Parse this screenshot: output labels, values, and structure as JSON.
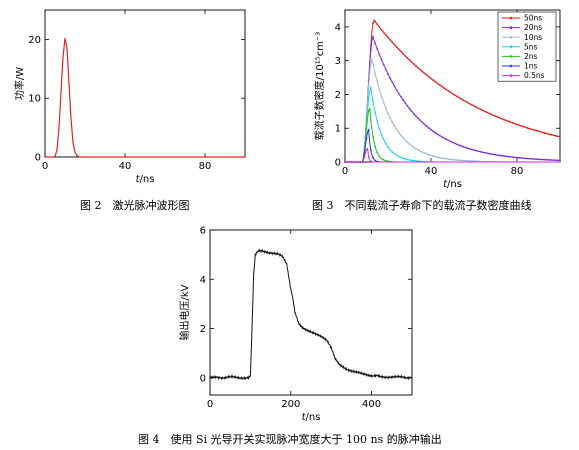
{
  "captions": {
    "fig2": "图 2　激光脉冲波形图",
    "fig3": "图 3　不同载流子寿命下的载流子数密度曲线",
    "fig4": "图 4　使用 Si 光导开关实现脉冲宽度大于 100 ns 的脉冲输出"
  },
  "chart_data": [
    {
      "id": "fig2",
      "type": "line",
      "ylabel": "功率/W",
      "xlabel_italic": "t",
      "xlabel_rest": "/ns",
      "xlim": [
        0,
        100
      ],
      "ylim": [
        0,
        25
      ],
      "xticks": [
        "0",
        "40",
        "80"
      ],
      "xtick_values": [
        0,
        40,
        80
      ],
      "yticks": [
        "0",
        "10",
        "20"
      ],
      "ytick_values": [
        0,
        10,
        20
      ],
      "series": [
        {
          "color": "#d62728",
          "x": [
            0,
            4,
            5,
            6,
            7,
            8,
            9,
            10,
            11,
            12,
            13,
            14,
            15,
            16,
            17,
            18,
            20,
            25,
            30,
            40,
            60,
            80,
            100
          ],
          "y": [
            0,
            0,
            0.1,
            1.2,
            5,
            11,
            17,
            20.2,
            18.5,
            12.5,
            6.5,
            2.5,
            0.8,
            0.2,
            0.05,
            0,
            0,
            0,
            0,
            0,
            0,
            0,
            0
          ]
        }
      ]
    },
    {
      "id": "fig3",
      "type": "line",
      "ylabel": "载流子数密度/10¹⁵cm⁻³",
      "xlabel_italic": "t",
      "xlabel_rest": "/ns",
      "xlim": [
        0,
        100
      ],
      "ylim": [
        0,
        4.5
      ],
      "xticks": [
        "0",
        "40",
        "80"
      ],
      "xtick_values": [
        0,
        40,
        80
      ],
      "yticks": [
        "0",
        "1",
        "2",
        "3",
        "4"
      ],
      "ytick_values": [
        0,
        1,
        2,
        3,
        4
      ],
      "legend_position": "top-right",
      "series": [
        {
          "name": "50ns",
          "color": "#e31a1c",
          "tau": 50,
          "peak_t": 13.5,
          "peak": 4.2
        },
        {
          "name": "20ns",
          "color": "#7a2bd4",
          "tau": 20,
          "peak_t": 13,
          "peak": 3.7
        },
        {
          "name": "10ns",
          "color": "#9fb8d8",
          "tau": 10,
          "peak_t": 12.5,
          "peak": 3.05
        },
        {
          "name": "5ns",
          "color": "#22d3e6",
          "tau": 5,
          "peak_t": 12,
          "peak": 2.2
        },
        {
          "name": "2ns",
          "color": "#22c422",
          "tau": 2,
          "peak_t": 11.5,
          "peak": 1.6
        },
        {
          "name": "1ns",
          "color": "#2b3bd6",
          "tau": 1,
          "peak_t": 11,
          "peak": 0.95
        },
        {
          "name": "0.5ns",
          "color": "#d42bd4",
          "tau": 0.5,
          "peak_t": 10.5,
          "peak": 0.4
        }
      ]
    },
    {
      "id": "fig4",
      "type": "line",
      "ylabel": "输出电压/kV",
      "xlabel_italic": "t",
      "xlabel_rest": "/ns",
      "xlim": [
        0,
        500
      ],
      "ylim": [
        -0.7,
        6
      ],
      "xticks": [
        "0",
        "200",
        "400"
      ],
      "xtick_values": [
        0,
        200,
        400
      ],
      "yticks": [
        "0",
        "2",
        "4",
        "6"
      ],
      "ytick_values": [
        0,
        2,
        4,
        6
      ],
      "series": [
        {
          "color": "#111111",
          "x": [
            0,
            50,
            95,
            100,
            103,
            108,
            112,
            115,
            120,
            130,
            140,
            150,
            160,
            170,
            180,
            190,
            200,
            205,
            210,
            220,
            230,
            240,
            250,
            260,
            270,
            280,
            290,
            300,
            310,
            320,
            330,
            340,
            350,
            360,
            370,
            380,
            390,
            400,
            420,
            450,
            480,
            500
          ],
          "y": [
            0,
            0.02,
            0,
            0.05,
            1.5,
            4.2,
            5.0,
            5.1,
            5.15,
            5.15,
            5.12,
            5.08,
            5.05,
            5.0,
            4.9,
            4.6,
            3.6,
            3.2,
            2.7,
            2.2,
            2.0,
            1.9,
            1.85,
            1.8,
            1.75,
            1.65,
            1.5,
            1.2,
            0.75,
            0.55,
            0.45,
            0.35,
            0.28,
            0.22,
            0.18,
            0.15,
            0.12,
            0.1,
            0.05,
            0.03,
            0.02,
            0
          ]
        }
      ]
    }
  ]
}
